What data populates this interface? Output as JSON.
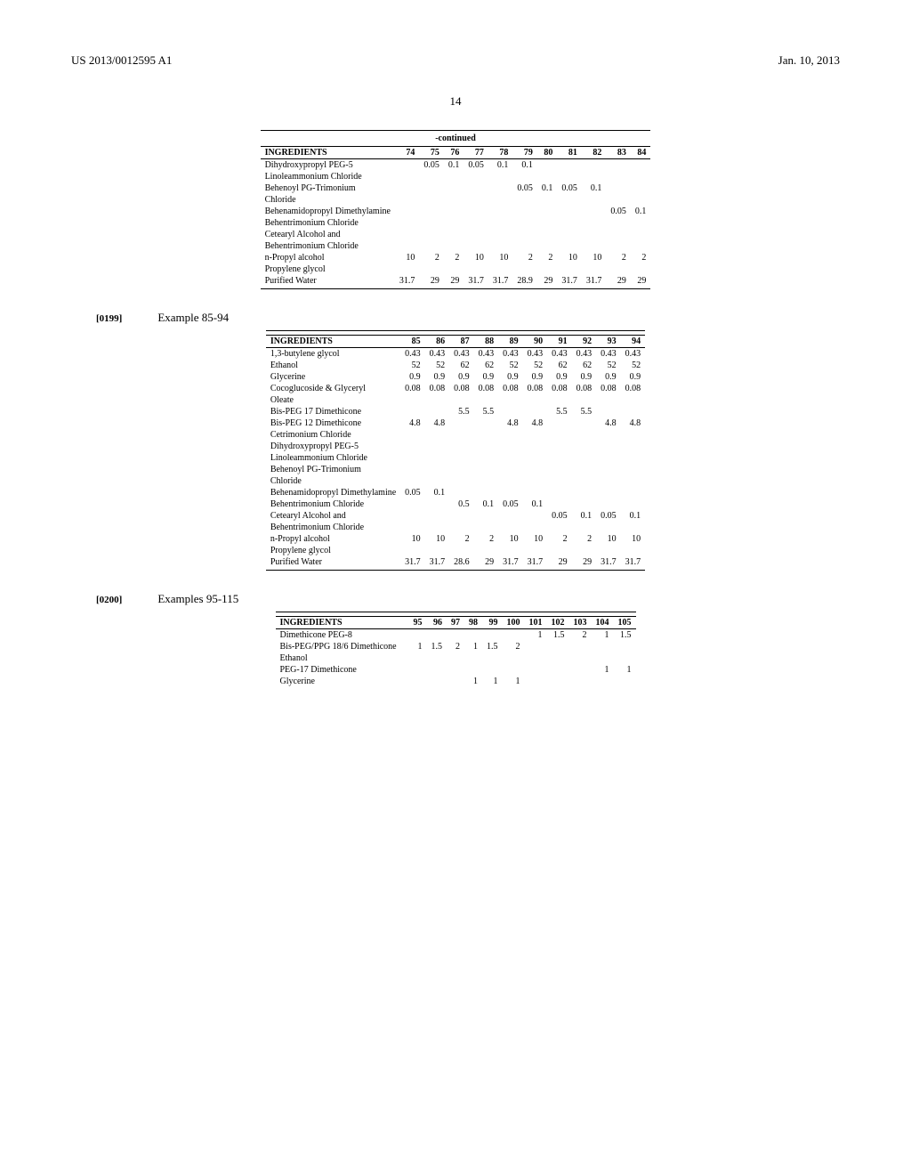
{
  "header": {
    "pub_number": "US 2013/0012595 A1",
    "date": "Jan. 10, 2013"
  },
  "page_number": "14",
  "table1": {
    "caption": "-continued",
    "header": "INGREDIENTS",
    "cols": [
      "74",
      "75",
      "76",
      "77",
      "78",
      "79",
      "80",
      "81",
      "82",
      "83",
      "84"
    ],
    "rows": [
      {
        "name": "Dihydroxypropyl PEG-5 Linoleammonium Chloride",
        "v": [
          "",
          "0.05",
          "0.1",
          "0.05",
          "0.1",
          "0.1",
          "",
          "",
          "",
          "",
          ""
        ]
      },
      {
        "name": "Behenoyl PG-Trimonium Chloride",
        "v": [
          "",
          "",
          "",
          "",
          "",
          "0.05",
          "0.1",
          "0.05",
          "0.1",
          "",
          ""
        ]
      },
      {
        "name": "Behenamidopropyl Dimethylamine Behentrimonium Chloride",
        "v": [
          "",
          "",
          "",
          "",
          "",
          "",
          "",
          "",
          "",
          "0.05",
          "0.1"
        ]
      },
      {
        "name": "Cetearyl Alcohol and Behentrimonium Chloride",
        "v": [
          "",
          "",
          "",
          "",
          "",
          "",
          "",
          "",
          "",
          "",
          ""
        ]
      },
      {
        "name": "n-Propyl alcohol",
        "v": [
          "10",
          "2",
          "2",
          "10",
          "10",
          "2",
          "2",
          "10",
          "10",
          "2",
          "2"
        ]
      },
      {
        "name": "Propylene glycol",
        "v": [
          "",
          "",
          "",
          "",
          "",
          "",
          "",
          "",
          "",
          "",
          ""
        ]
      },
      {
        "name": "Purified Water",
        "v": [
          "31.7",
          "29",
          "29",
          "31.7",
          "31.7",
          "28.9",
          "29",
          "31.7",
          "31.7",
          "29",
          "29"
        ]
      }
    ]
  },
  "sec2": {
    "para": "[0199]",
    "label": "Example 85-94"
  },
  "table2": {
    "header": "INGREDIENTS",
    "cols": [
      "85",
      "86",
      "87",
      "88",
      "89",
      "90",
      "91",
      "92",
      "93",
      "94"
    ],
    "rows": [
      {
        "name": "1,3-butylene glycol",
        "v": [
          "0.43",
          "0.43",
          "0.43",
          "0.43",
          "0.43",
          "0.43",
          "0.43",
          "0.43",
          "0.43",
          "0.43"
        ]
      },
      {
        "name": "Ethanol",
        "v": [
          "52",
          "52",
          "62",
          "62",
          "52",
          "52",
          "62",
          "62",
          "52",
          "52"
        ]
      },
      {
        "name": "Glycerine",
        "v": [
          "0.9",
          "0.9",
          "0.9",
          "0.9",
          "0.9",
          "0.9",
          "0.9",
          "0.9",
          "0.9",
          "0.9"
        ]
      },
      {
        "name": "Cocoglucoside & Glyceryl Oleate",
        "v": [
          "0.08",
          "0.08",
          "0.08",
          "0.08",
          "0.08",
          "0.08",
          "0.08",
          "0.08",
          "0.08",
          "0.08"
        ]
      },
      {
        "name": "Bis-PEG 17 Dimethicone",
        "v": [
          "",
          "",
          "5.5",
          "5.5",
          "",
          "",
          "5.5",
          "5.5",
          "",
          ""
        ]
      },
      {
        "name": "Bis-PEG 12 Dimethicone",
        "v": [
          "4.8",
          "4.8",
          "",
          "",
          "4.8",
          "4.8",
          "",
          "",
          "4.8",
          "4.8"
        ]
      },
      {
        "name": "Cetrimonium Chloride",
        "v": [
          "",
          "",
          "",
          "",
          "",
          "",
          "",
          "",
          "",
          ""
        ]
      },
      {
        "name": "Dihydroxypropyl PEG-5 Linoleammonium Chloride",
        "v": [
          "",
          "",
          "",
          "",
          "",
          "",
          "",
          "",
          "",
          ""
        ]
      },
      {
        "name": "Behenoyl PG-Trimonium Chloride",
        "v": [
          "",
          "",
          "",
          "",
          "",
          "",
          "",
          "",
          "",
          ""
        ]
      },
      {
        "name": "Behenamidopropyl Dimethylamine",
        "v": [
          "0.05",
          "0.1",
          "",
          "",
          "",
          "",
          "",
          "",
          "",
          ""
        ]
      },
      {
        "name": "Behentrimonium Chloride",
        "v": [
          "",
          "",
          "0.5",
          "0.1",
          "0.05",
          "0.1",
          "",
          "",
          "",
          ""
        ]
      },
      {
        "name": "Cetearyl Alcohol and Behentrimonium Chloride",
        "v": [
          "",
          "",
          "",
          "",
          "",
          "",
          "0.05",
          "0.1",
          "0.05",
          "0.1"
        ]
      },
      {
        "name": "n-Propyl alcohol",
        "v": [
          "10",
          "10",
          "2",
          "2",
          "10",
          "10",
          "2",
          "2",
          "10",
          "10"
        ]
      },
      {
        "name": "Propylene glycol",
        "v": [
          "",
          "",
          "",
          "",
          "",
          "",
          "",
          "",
          "",
          ""
        ]
      },
      {
        "name": "Purified Water",
        "v": [
          "31.7",
          "31.7",
          "28.6",
          "29",
          "31.7",
          "31.7",
          "29",
          "29",
          "31.7",
          "31.7"
        ]
      }
    ]
  },
  "sec3": {
    "para": "[0200]",
    "label": "Examples 95-115"
  },
  "table3": {
    "header": "INGREDIENTS",
    "cols": [
      "95",
      "96",
      "97",
      "98",
      "99",
      "100",
      "101",
      "102",
      "103",
      "104",
      "105"
    ],
    "rows": [
      {
        "name": "Dimethicone PEG-8",
        "v": [
          "",
          "",
          "",
          "",
          "",
          "",
          "1",
          "1.5",
          "2",
          "1",
          "1.5"
        ]
      },
      {
        "name": "Bis-PEG/PPG 18/6 Dimethicone",
        "v": [
          "1",
          "1.5",
          "2",
          "1",
          "1.5",
          "2",
          "",
          "",
          "",
          "",
          ""
        ]
      },
      {
        "name": "Ethanol",
        "v": [
          "",
          "",
          "",
          "",
          "",
          "",
          "",
          "",
          "",
          "",
          ""
        ]
      },
      {
        "name": "PEG-17 Dimethicone",
        "v": [
          "",
          "",
          "",
          "",
          "",
          "",
          "",
          "",
          "",
          "1",
          "1"
        ]
      },
      {
        "name": "Glycerine",
        "v": [
          "",
          "",
          "",
          "1",
          "1",
          "1",
          "",
          "",
          "",
          "",
          ""
        ]
      }
    ]
  }
}
